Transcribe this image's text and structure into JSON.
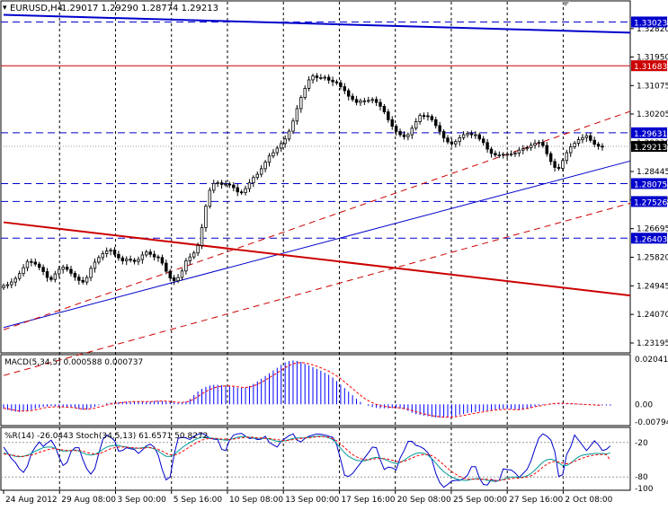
{
  "symbol_header": {
    "symbol": "EURUSD,H4",
    "ohlc": "1.29017 1.29290 1.28774 1.29213"
  },
  "indicators": {
    "macd_label": "MACD(5,34,5) 0.000588 0.000737",
    "oscillator_label": "%R(14) -26.0443   Stoch(34,5,13) 61.6571 50.8272"
  },
  "colors": {
    "up_bar": "#ffffff",
    "down_bar": "#000000",
    "resistance_support": "#0000cc",
    "red_levels": "#cc0000",
    "macd_histogram": "#0000ff",
    "macd_signal": "#ff0000",
    "williams_r": "#0000cc",
    "stoch_main": "#009999",
    "stoch_signal": "#ff0000"
  },
  "chart_data": [
    {
      "type": "candlestick",
      "title": "EURUSD,H4",
      "price_axis_ticks": [
        "1.32820",
        "1.31950",
        "1.31075",
        "1.30205",
        "1.29330",
        "1.28445",
        "1.27575",
        "1.26695",
        "1.25820",
        "1.24945",
        "1.24070",
        "1.23195"
      ],
      "price_range": [
        1.2292,
        1.3364
      ],
      "horizontal_levels": [
        {
          "label": "1.33023",
          "value": 1.33023,
          "color": "blue",
          "style": "dashed"
        },
        {
          "label": "1.31683",
          "value": 1.31683,
          "color": "red",
          "style": "solid"
        },
        {
          "label": "1.29631",
          "value": 1.29631,
          "color": "blue",
          "style": "dashed"
        },
        {
          "label": "1.29213",
          "value": 1.29213,
          "color": "black",
          "style": "current-price"
        },
        {
          "label": "1.28075",
          "value": 1.28075,
          "color": "blue",
          "style": "dashed"
        },
        {
          "label": "1.27526",
          "value": 1.27526,
          "color": "blue",
          "style": "dashed"
        },
        {
          "label": "1.26403",
          "value": 1.26403,
          "color": "blue",
          "style": "dashed"
        }
      ],
      "time_axis_labels": [
        "24 Aug 2012",
        "29 Aug 08:00",
        "3 Sep 00:00",
        "5 Sep 16:00",
        "10 Sep 08:00",
        "13 Sep 00:00",
        "17 Sep 16:00",
        "20 Sep 08:00",
        "25 Sep 00:00",
        "27 Sep 16:00",
        "2 Oct 08:00"
      ],
      "close_series": [
        1.2495,
        1.2498,
        1.2506,
        1.2517,
        1.2532,
        1.255,
        1.2569,
        1.2567,
        1.2561,
        1.2551,
        1.2538,
        1.252,
        1.2514,
        1.2531,
        1.2545,
        1.2552,
        1.2545,
        1.2533,
        1.2521,
        1.2511,
        1.2506,
        1.252,
        1.2548,
        1.2567,
        1.2581,
        1.2593,
        1.2601,
        1.2604,
        1.2591,
        1.258,
        1.2571,
        1.2576,
        1.2573,
        1.2569,
        1.2575,
        1.2589,
        1.2598,
        1.2591,
        1.2583,
        1.2581,
        1.2564,
        1.2539,
        1.2519,
        1.251,
        1.252,
        1.254,
        1.2571,
        1.2583,
        1.2595,
        1.2618,
        1.2673,
        1.2738,
        1.2787,
        1.2808,
        1.281,
        1.2805,
        1.2806,
        1.2803,
        1.2795,
        1.2782,
        1.278,
        1.2792,
        1.281,
        1.2826,
        1.2836,
        1.2853,
        1.2873,
        1.2892,
        1.2902,
        1.2916,
        1.293,
        1.2944,
        1.2968,
        1.2999,
        1.3037,
        1.3071,
        1.3099,
        1.3125,
        1.3137,
        1.3132,
        1.3132,
        1.3133,
        1.3124,
        1.3119,
        1.3116,
        1.3104,
        1.3092,
        1.3075,
        1.3065,
        1.3056,
        1.3061,
        1.3061,
        1.3062,
        1.3065,
        1.3056,
        1.3044,
        1.3027,
        1.3003,
        1.2983,
        1.2967,
        1.2957,
        1.2951,
        1.2957,
        1.2977,
        1.2997,
        1.3016,
        1.3015,
        1.3013,
        1.3003,
        1.2985,
        1.2967,
        1.2947,
        1.2935,
        1.2929,
        1.2936,
        1.2948,
        1.2957,
        1.2961,
        1.2957,
        1.2957,
        1.2944,
        1.2933,
        1.2913,
        1.29,
        1.2895,
        1.2895,
        1.2897,
        1.2897,
        1.2898,
        1.2901,
        1.291,
        1.2914,
        1.2917,
        1.2925,
        1.2931,
        1.2934,
        1.2924,
        1.2899,
        1.2875,
        1.2857,
        1.2854,
        1.2878,
        1.2902,
        1.292,
        1.2931,
        1.2942,
        1.2948,
        1.2954,
        1.294,
        1.2928,
        1.2922,
        1.2921
      ],
      "trendlines": [
        {
          "name": "upper-channel",
          "color": "blue",
          "points": [
            [
              0,
              1.3324
            ],
            [
              160,
              1.3269
            ]
          ]
        },
        {
          "name": "rising-support",
          "color": "blue",
          "points": [
            [
              0,
              1.2367
            ],
            [
              160,
              1.2883
            ]
          ]
        },
        {
          "name": "falling-line",
          "color": "red",
          "points": [
            [
              0,
              1.2689
            ],
            [
              160,
              1.2462
            ]
          ]
        },
        {
          "name": "channel-upper-dashed",
          "color": "red",
          "points": [
            [
              0,
              1.236
            ],
            [
              160,
              1.3037
            ]
          ]
        },
        {
          "name": "channel-lower-dashed",
          "color": "red",
          "points": [
            [
              0,
              1.222
            ],
            [
              160,
              1.2754
            ]
          ]
        }
      ]
    },
    {
      "type": "bar",
      "title": "MACD(5,34,5) 0.000588 0.000737",
      "y_axis_ticks": [
        "0.020413",
        "0.00",
        "-0.00794"
      ],
      "ylim": [
        -0.0088,
        0.0212
      ],
      "histogram": [
        -0.002,
        -0.0025,
        -0.003,
        -0.0033,
        -0.0035,
        -0.0032,
        -0.0028,
        -0.0025,
        -0.002,
        -0.0015,
        -0.0012,
        -0.001,
        -0.0008,
        -0.0009,
        -0.0011,
        -0.0012,
        -0.0012,
        -0.0014,
        -0.0017,
        -0.0022,
        -0.0025,
        -0.0024,
        -0.0018,
        -0.0011,
        -0.0004,
        0.0001,
        0.0005,
        0.0007,
        0.0008,
        0.0009,
        0.0011,
        0.0012,
        0.0013,
        0.0013,
        0.0012,
        0.0011,
        0.0011,
        0.0013,
        0.0015,
        0.0016,
        0.0015,
        0.0013,
        0.0011,
        0.0008,
        0.0006,
        0.0008,
        0.0012,
        0.0024,
        0.0042,
        0.0058,
        0.007,
        0.0079,
        0.0085,
        0.0088,
        0.0088,
        0.0086,
        0.0084,
        0.0082,
        0.0079,
        0.0075,
        0.0074,
        0.0076,
        0.0082,
        0.0092,
        0.0104,
        0.0116,
        0.0128,
        0.014,
        0.0153,
        0.0165,
        0.0178,
        0.0189,
        0.0195,
        0.0198,
        0.0196,
        0.0191,
        0.0183,
        0.0175,
        0.0168,
        0.016,
        0.0152,
        0.0143,
        0.0133,
        0.0121,
        0.0105,
        0.0089,
        0.0073,
        0.0057,
        0.0041,
        0.0025,
        0.0011,
        0.0,
        -0.0007,
        -0.0012,
        -0.0016,
        -0.0018,
        -0.0018,
        -0.0018,
        -0.0017,
        -0.0017,
        -0.0019,
        -0.0023,
        -0.003,
        -0.0038,
        -0.0045,
        -0.0048,
        -0.0051,
        -0.0054,
        -0.0057,
        -0.0059,
        -0.006,
        -0.006,
        -0.006,
        -0.0058,
        -0.0053,
        -0.0047,
        -0.0044,
        -0.004,
        -0.0037,
        -0.0035,
        -0.0033,
        -0.0031,
        -0.0028,
        -0.0026,
        -0.0024,
        -0.0022,
        -0.0021,
        -0.002,
        -0.0022,
        -0.0024,
        -0.0026,
        -0.0024,
        -0.002,
        -0.0015,
        -0.001,
        -0.0006,
        -0.0003,
        0.0,
        0.0003,
        0.0005,
        0.0006,
        0.0006,
        0.0005,
        0.0004,
        0.0003,
        0.0002,
        0.0001,
        0.0,
        -0.0001,
        -0.0002,
        -0.0003,
        -0.0004,
        -0.0005,
        -0.0006
      ],
      "signal": [
        -0.0018,
        -0.002,
        -0.0024,
        -0.0027,
        -0.003,
        -0.0031,
        -0.003,
        -0.0028,
        -0.0025,
        -0.0021,
        -0.0017,
        -0.0014,
        -0.0012,
        -0.0011,
        -0.0011,
        -0.0012,
        -0.0013,
        -0.0014,
        -0.0016,
        -0.0019,
        -0.0021,
        -0.0022,
        -0.0021,
        -0.0017,
        -0.0012,
        -0.0008,
        -0.0003,
        0.0001,
        0.0004,
        0.0006,
        0.0008,
        0.001,
        0.0011,
        0.0012,
        0.0012,
        0.0012,
        0.0012,
        0.0012,
        0.0013,
        0.0014,
        0.0014,
        0.0014,
        0.0013,
        0.0011,
        0.0009,
        0.0009,
        0.001,
        0.0015,
        0.0024,
        0.0035,
        0.0047,
        0.0058,
        0.0067,
        0.0074,
        0.0079,
        0.0082,
        0.0083,
        0.0083,
        0.0082,
        0.0079,
        0.0077,
        0.0076,
        0.0078,
        0.0083,
        0.009,
        0.0099,
        0.0109,
        0.012,
        0.0131,
        0.0142,
        0.0154,
        0.0166,
        0.0175,
        0.0183,
        0.0187,
        0.0189,
        0.0187,
        0.0183,
        0.0178,
        0.0172,
        0.0165,
        0.0157,
        0.0149,
        0.0139,
        0.0128,
        0.0115,
        0.0101,
        0.0086,
        0.0071,
        0.0056,
        0.0041,
        0.0027,
        0.0016,
        0.0007,
        0.0,
        -0.0006,
        -0.0009,
        -0.0012,
        -0.0014,
        -0.0015,
        -0.0016,
        -0.0019,
        -0.0023,
        -0.0028,
        -0.0034,
        -0.0039,
        -0.0043,
        -0.0047,
        -0.0051,
        -0.0054,
        -0.0056,
        -0.0058,
        -0.0058,
        -0.0058,
        -0.0056,
        -0.0053,
        -0.005,
        -0.0047,
        -0.0043,
        -0.004,
        -0.0037,
        -0.0034,
        -0.0031,
        -0.0028,
        -0.0026,
        -0.0024,
        -0.0023,
        -0.0022,
        -0.0023,
        -0.0024,
        -0.0024,
        -0.0022,
        -0.0019,
        -0.0015,
        -0.0011,
        -0.0008,
        -0.0005,
        -0.0001,
        0.0002,
        0.0004,
        0.0005,
        0.0005,
        0.0004,
        0.0003,
        0.0002,
        0.0001,
        0.0,
        -0.0001,
        -0.0002,
        -0.0003,
        -0.0004,
        -0.0005
      ]
    },
    {
      "type": "line",
      "title": "%R(14) -26.0443   Stoch(34,5,13) 61.6571 50.8272",
      "y_axis_ticks": [
        "-20",
        "-80",
        "-100"
      ],
      "levels": [
        -20,
        -80
      ],
      "ylim": [
        -100,
        0
      ],
      "series": [
        {
          "name": "%R(14)",
          "values": [
            -28,
            -38,
            -48,
            -55,
            -66,
            -72,
            -61,
            -39,
            -28,
            -19,
            -27,
            -21,
            -16,
            -27,
            -45,
            -60,
            -55,
            -36,
            -29,
            -29,
            -50,
            -66,
            -75,
            -66,
            -39,
            -15,
            -7,
            -11,
            -17,
            -35,
            -34,
            -29,
            -31,
            -32,
            -39,
            -33,
            -26,
            -23,
            -28,
            -42,
            -67,
            -85,
            -80,
            -41,
            -13,
            -11,
            -12,
            -15,
            -9,
            -6,
            -4,
            -7,
            -13,
            -14,
            -15,
            -32,
            -34,
            -16,
            -7,
            -5,
            -4,
            -9,
            -13,
            -12,
            -15,
            -14,
            -9,
            -20,
            -24,
            -28,
            -18,
            -13,
            -8,
            -5,
            -16,
            -19,
            -13,
            -9,
            -7,
            -5,
            -6,
            -7,
            -9,
            -11,
            -24,
            -50,
            -77,
            -79,
            -74,
            -65,
            -56,
            -47,
            -38,
            -28,
            -29,
            -50,
            -67,
            -63,
            -64,
            -68,
            -47,
            -34,
            -18,
            -18,
            -25,
            -27,
            -31,
            -38,
            -49,
            -74,
            -90,
            -98,
            -93,
            -87,
            -86,
            -86,
            -83,
            -77,
            -62,
            -62,
            -82,
            -93,
            -94,
            -84,
            -88,
            -86,
            -66,
            -67,
            -68,
            -73,
            -81,
            -74,
            -67,
            -52,
            -31,
            -12,
            -5,
            -9,
            -16,
            -36,
            -79,
            -76,
            -41,
            -28,
            -7,
            -16,
            -25,
            -34,
            -26,
            -17,
            -24,
            -34,
            -32,
            -26
          ]
        },
        {
          "name": "Stoch main",
          "values": [
            -38,
            -40,
            -42,
            -44,
            -45,
            -44,
            -42,
            -39,
            -35,
            -32,
            -29,
            -28,
            -28,
            -30,
            -33,
            -35,
            -35,
            -34,
            -33,
            -35,
            -38,
            -41,
            -42,
            -41,
            -37,
            -32,
            -28,
            -26,
            -25,
            -25,
            -27,
            -28,
            -29,
            -30,
            -30,
            -29,
            -28,
            -29,
            -31,
            -35,
            -40,
            -44,
            -44,
            -41,
            -35,
            -29,
            -24,
            -20,
            -16,
            -13,
            -11,
            -11,
            -12,
            -13,
            -14,
            -15,
            -16,
            -15,
            -13,
            -11,
            -10,
            -10,
            -11,
            -12,
            -13,
            -13,
            -13,
            -14,
            -16,
            -18,
            -18,
            -17,
            -15,
            -13,
            -12,
            -12,
            -12,
            -11,
            -10,
            -9,
            -9,
            -10,
            -12,
            -15,
            -22,
            -30,
            -38,
            -44,
            -48,
            -51,
            -52,
            -52,
            -50,
            -47,
            -46,
            -47,
            -49,
            -52,
            -55,
            -57,
            -55,
            -51,
            -46,
            -42,
            -39,
            -38,
            -39,
            -42,
            -48,
            -56,
            -64,
            -71,
            -76,
            -80,
            -83,
            -85,
            -86,
            -86,
            -84,
            -83,
            -83,
            -84,
            -86,
            -87,
            -87,
            -86,
            -84,
            -82,
            -80,
            -80,
            -81,
            -80,
            -78,
            -74,
            -68,
            -61,
            -54,
            -50,
            -49,
            -51,
            -56,
            -60,
            -60,
            -56,
            -50,
            -45,
            -42,
            -41,
            -40,
            -39,
            -39,
            -39,
            -40,
            -38
          ]
        },
        {
          "name": "Stoch signal",
          "values": [
            -40,
            -41,
            -42,
            -43,
            -44,
            -44,
            -43,
            -42,
            -40,
            -37,
            -35,
            -33,
            -31,
            -31,
            -32,
            -33,
            -34,
            -34,
            -34,
            -34,
            -35,
            -37,
            -39,
            -40,
            -40,
            -37,
            -34,
            -31,
            -29,
            -28,
            -28,
            -28,
            -29,
            -29,
            -30,
            -30,
            -29,
            -29,
            -30,
            -32,
            -35,
            -39,
            -41,
            -42,
            -40,
            -36,
            -32,
            -27,
            -23,
            -19,
            -16,
            -14,
            -13,
            -13,
            -13,
            -14,
            -14,
            -15,
            -14,
            -13,
            -12,
            -11,
            -11,
            -11,
            -12,
            -12,
            -13,
            -13,
            -14,
            -15,
            -16,
            -17,
            -16,
            -15,
            -14,
            -13,
            -12,
            -12,
            -11,
            -10,
            -10,
            -10,
            -11,
            -13,
            -17,
            -23,
            -29,
            -35,
            -41,
            -45,
            -48,
            -50,
            -50,
            -49,
            -48,
            -48,
            -48,
            -49,
            -51,
            -53,
            -54,
            -53,
            -50,
            -47,
            -44,
            -42,
            -41,
            -41,
            -43,
            -47,
            -53,
            -59,
            -65,
            -71,
            -75,
            -79,
            -82,
            -84,
            -84,
            -84,
            -84,
            -84,
            -84,
            -85,
            -86,
            -86,
            -85,
            -84,
            -83,
            -82,
            -82,
            -81,
            -80,
            -78,
            -74,
            -69,
            -63,
            -58,
            -54,
            -53,
            -54,
            -56,
            -57,
            -56,
            -53,
            -50,
            -47,
            -45,
            -43,
            -42,
            -41,
            -41,
            -41,
            -51
          ]
        }
      ]
    }
  ]
}
